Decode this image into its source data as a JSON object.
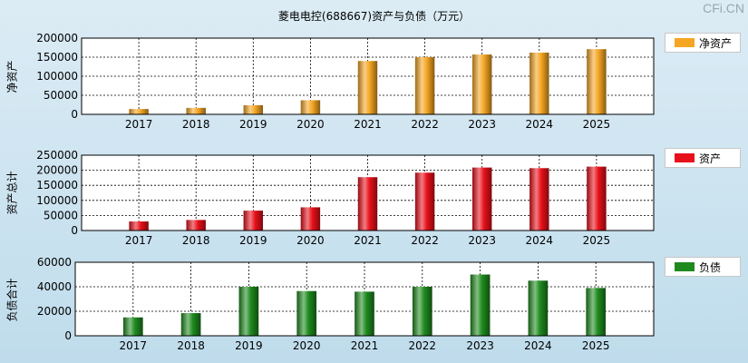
{
  "title": "菱电电控(688667)资产与负债（万元）",
  "watermark": "CFi.CN",
  "chart_data": [
    {
      "type": "bar",
      "name": "net_assets",
      "ylabel": "净资产",
      "legend": "净资产",
      "color": "#f5a623",
      "categories": [
        "2017",
        "2018",
        "2019",
        "2020",
        "2021",
        "2022",
        "2023",
        "2024",
        "2025"
      ],
      "values": [
        14000,
        17000,
        24000,
        37000,
        140000,
        150000,
        157000,
        162000,
        171000
      ],
      "ylim": [
        0,
        200000
      ],
      "yticks": [
        0,
        50000,
        100000,
        150000,
        200000
      ],
      "grid": true,
      "legend_position": "right"
    },
    {
      "type": "bar",
      "name": "total_assets",
      "ylabel": "资产总计",
      "legend": "资产",
      "color": "#e8101a",
      "categories": [
        "2017",
        "2018",
        "2019",
        "2020",
        "2021",
        "2022",
        "2023",
        "2024",
        "2025"
      ],
      "values": [
        30000,
        35000,
        66000,
        77000,
        177000,
        192000,
        209000,
        207000,
        212000
      ],
      "ylim": [
        0,
        250000
      ],
      "yticks": [
        0,
        50000,
        100000,
        150000,
        200000,
        250000
      ],
      "grid": true,
      "legend_position": "right"
    },
    {
      "type": "bar",
      "name": "liabilities",
      "ylabel": "负债合计",
      "legend": "负债",
      "color": "#1e8a1e",
      "categories": [
        "2017",
        "2018",
        "2019",
        "2020",
        "2021",
        "2022",
        "2023",
        "2024",
        "2025"
      ],
      "values": [
        15000,
        18500,
        40000,
        36500,
        36000,
        40000,
        50000,
        45000,
        39000
      ],
      "ylim": [
        0,
        60000
      ],
      "yticks": [
        0,
        20000,
        40000,
        60000
      ],
      "grid": true,
      "legend_position": "right"
    }
  ]
}
